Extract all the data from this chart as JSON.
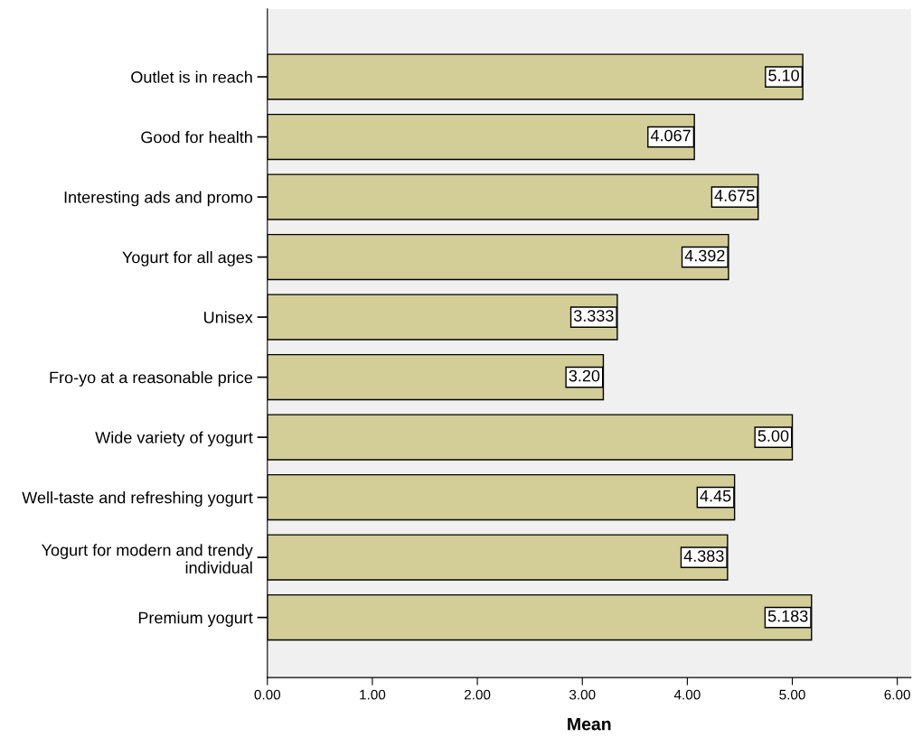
{
  "chart_data": {
    "type": "bar",
    "orientation": "horizontal",
    "xlabel": "Mean",
    "categories": [
      "Outlet is in reach",
      "Good for health",
      "Interesting ads and promo",
      "Yogurt for all ages",
      "Unisex",
      "Fro-yo at a reasonable price",
      "Wide variety of yogurt",
      "Well-taste and refreshing yogurt",
      "Yogurt for modern and trendy\nindividual",
      "Premium yogurt"
    ],
    "values": [
      5.1,
      4.067,
      4.675,
      4.392,
      3.333,
      3.2,
      5.0,
      4.45,
      4.383,
      5.183
    ],
    "value_labels": [
      "5.10",
      "4.067",
      "4.675",
      "4.392",
      "3.333",
      "3.20",
      "5.00",
      "4.45",
      "4.383",
      "5.183"
    ],
    "color": "#d3ce98",
    "xlim": [
      0,
      6.13
    ],
    "xticks": [
      {
        "value": 0,
        "label": "0.00"
      },
      {
        "value": 1,
        "label": "1.00"
      },
      {
        "value": 2,
        "label": "2.00"
      },
      {
        "value": 3,
        "label": "3.00"
      },
      {
        "value": 4,
        "label": "4.00"
      },
      {
        "value": 5,
        "label": "5.00"
      },
      {
        "value": 6,
        "label": "6.00"
      }
    ],
    "grid": false,
    "legend": false
  }
}
